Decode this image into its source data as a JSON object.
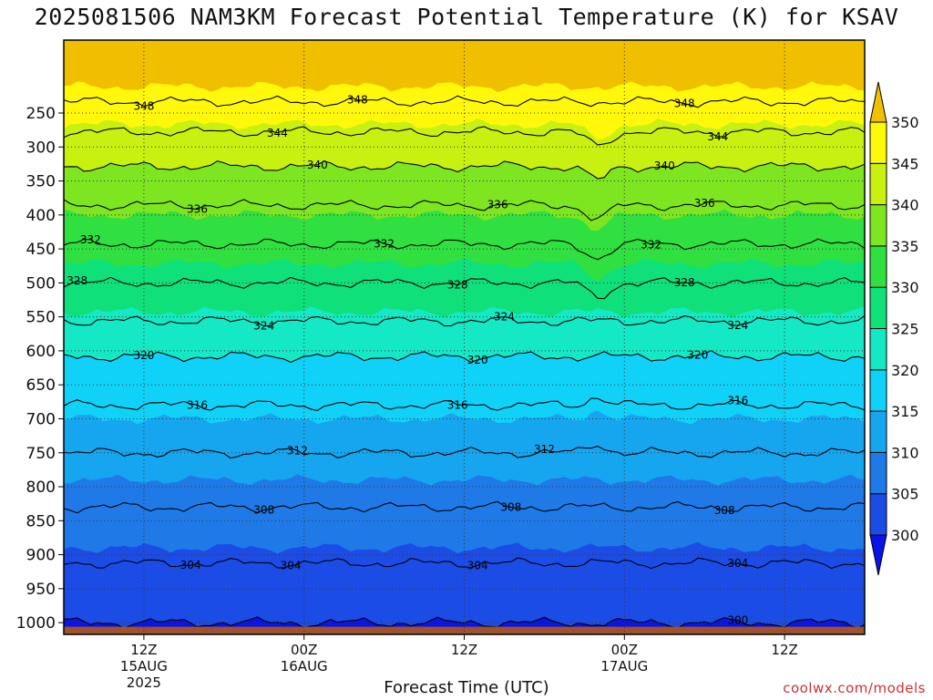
{
  "title": "2025081506 NAM3KM Forecast Potential Temperature (K) for KSAV",
  "xlabel": "Forecast Time (UTC)",
  "credit": "coolwx.com/models",
  "chart_data": {
    "type": "heatmap",
    "title": "2025081506 NAM3KM Forecast Potential Temperature (K) for KSAV",
    "xlabel": "Forecast Time (UTC)",
    "ylabel": "",
    "y_axis": {
      "scale": "pressure",
      "reversed": true,
      "ticks": [
        250,
        300,
        350,
        400,
        450,
        500,
        550,
        600,
        650,
        700,
        750,
        800,
        850,
        900,
        950,
        1000
      ],
      "range": [
        200,
        1030
      ]
    },
    "x_axis": {
      "range_hours": [
        0,
        60
      ],
      "ticks": [
        {
          "hour": 6,
          "label": "12Z",
          "sub1": "15AUG",
          "sub2": "2025"
        },
        {
          "hour": 18,
          "label": "00Z",
          "sub1": "16AUG",
          "sub2": ""
        },
        {
          "hour": 30,
          "label": "12Z",
          "sub1": "",
          "sub2": ""
        },
        {
          "hour": 42,
          "label": "00Z",
          "sub1": "17AUG",
          "sub2": ""
        },
        {
          "hour": 54,
          "label": "12Z",
          "sub1": "",
          "sub2": ""
        }
      ]
    },
    "grid": "dotted",
    "colorbar": {
      "levels": [
        300,
        305,
        310,
        315,
        320,
        325,
        330,
        335,
        340,
        345,
        350
      ],
      "colors": [
        "#0a14e6",
        "#1c4ce6",
        "#1f7ae8",
        "#16a6f0",
        "#10d2f8",
        "#14e8c4",
        "#10e07a",
        "#30e040",
        "#7ee620",
        "#c8f010",
        "#fff80a",
        "#f0c000"
      ],
      "extend": "both"
    },
    "contour_interval": 4,
    "contour_labels": [
      {
        "value": 348,
        "label": "348",
        "hours": [
          6.0,
          22.0,
          46.5
        ]
      },
      {
        "value": 344,
        "label": "344",
        "hours": [
          16.0,
          49.0
        ]
      },
      {
        "value": 340,
        "label": "340",
        "hours": [
          19.0,
          45.0
        ]
      },
      {
        "value": 336,
        "label": "336",
        "hours": [
          10.0,
          32.5,
          48.0
        ]
      },
      {
        "value": 332,
        "label": "332",
        "hours": [
          2.0,
          24.0,
          44.0
        ]
      },
      {
        "value": 328,
        "label": "328",
        "hours": [
          1.0,
          29.5,
          46.5
        ]
      },
      {
        "value": 324,
        "label": "324",
        "hours": [
          15.0,
          33.0,
          50.5
        ]
      },
      {
        "value": 320,
        "label": "320",
        "hours": [
          6.0,
          31.0,
          47.5
        ]
      },
      {
        "value": 316,
        "label": "316",
        "hours": [
          10.0,
          29.5,
          50.5
        ]
      },
      {
        "value": 312,
        "label": "312",
        "hours": [
          17.5,
          36.0
        ]
      },
      {
        "value": 308,
        "label": "308",
        "hours": [
          15.0,
          33.5,
          49.5
        ]
      },
      {
        "value": 304,
        "label": "304",
        "hours": [
          9.5,
          31.0,
          50.5
        ]
      },
      {
        "value": 304,
        "label": "304",
        "hours": [
          17.0
        ]
      },
      {
        "value": 300,
        "label": "300",
        "hours": [
          50.5
        ]
      }
    ],
    "ground": "below 1015 hPa"
  }
}
